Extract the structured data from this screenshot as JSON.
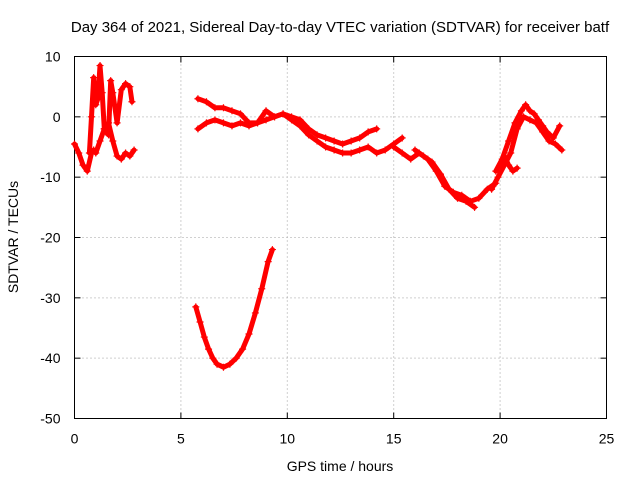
{
  "chart_data": {
    "type": "scatter",
    "title": "Day 364 of 2021, Sidereal Day-to-day VTEC variation (SDTVAR) for receiver batf",
    "xlabel": "GPS time / hours",
    "ylabel": "SDTVAR / TECUs",
    "xlim": [
      0,
      25
    ],
    "ylim": [
      -50,
      10
    ],
    "xticks": [
      0,
      5,
      10,
      15,
      20,
      25
    ],
    "yticks": [
      -50,
      -40,
      -30,
      -20,
      -10,
      0,
      10
    ],
    "grid": true,
    "marker": "+",
    "color": "#ff0000",
    "series": [
      {
        "name": "segment-early-lower",
        "x": [
          0.0,
          0.2,
          0.4,
          0.6,
          0.8,
          0.9,
          1.0,
          1.2,
          1.4,
          1.6,
          1.8,
          2.0,
          2.2,
          2.4,
          2.6,
          2.8
        ],
        "y": [
          -4.5,
          -6.0,
          -8.0,
          -9.0,
          -6.0,
          -5.5,
          -6.0,
          -4.0,
          -2.0,
          -1.0,
          -4.0,
          -6.5,
          -7.0,
          -6.0,
          -6.5,
          -5.5
        ]
      },
      {
        "name": "segment-early-spikes",
        "x": [
          0.7,
          0.8,
          0.9,
          1.0,
          1.1,
          1.2,
          1.3,
          1.4,
          1.6,
          1.7,
          1.8,
          2.0,
          2.2,
          2.4,
          2.6,
          2.7
        ],
        "y": [
          -6.0,
          0.0,
          6.5,
          2.0,
          3.0,
          8.5,
          4.0,
          -2.0,
          -3.0,
          6.0,
          4.0,
          -1.0,
          4.5,
          5.5,
          5.0,
          2.5
        ]
      },
      {
        "name": "segment-morning-upper",
        "x": [
          5.8,
          6.2,
          6.6,
          7.0,
          7.4,
          7.8,
          8.2,
          8.6,
          9.0,
          9.4,
          9.8,
          10.2,
          10.6,
          11.0,
          11.4,
          11.8,
          12.2,
          12.6,
          13.0,
          13.4,
          13.8,
          14.2
        ],
        "y": [
          3.0,
          2.5,
          1.5,
          1.5,
          1.0,
          0.5,
          -1.0,
          -1.0,
          1.0,
          0.0,
          0.5,
          0.0,
          -0.5,
          -2.0,
          -3.0,
          -3.5,
          -4.0,
          -4.5,
          -4.0,
          -3.5,
          -2.5,
          -2.0
        ]
      },
      {
        "name": "segment-morning-lower",
        "x": [
          5.8,
          6.2,
          6.6,
          7.0,
          7.4,
          7.8,
          8.2,
          8.6,
          9.0,
          9.4,
          9.8,
          10.2,
          10.6,
          11.0,
          11.4,
          11.8,
          12.2,
          12.6,
          13.0,
          13.4,
          13.8,
          14.2,
          14.6,
          15.0,
          15.4
        ],
        "y": [
          -2.0,
          -1.0,
          -0.5,
          -1.0,
          -1.5,
          -1.0,
          -1.5,
          -1.0,
          -0.5,
          0.0,
          0.5,
          -0.5,
          -1.5,
          -3.0,
          -4.0,
          -5.0,
          -5.5,
          -6.0,
          -6.0,
          -5.5,
          -5.0,
          -6.0,
          -5.5,
          -4.5,
          -3.5
        ]
      },
      {
        "name": "segment-deep-dip",
        "x": [
          5.7,
          5.9,
          6.1,
          6.3,
          6.5,
          6.7,
          7.0,
          7.3,
          7.6,
          7.9,
          8.2,
          8.5,
          8.8,
          9.1,
          9.3
        ],
        "y": [
          -31.5,
          -34.0,
          -36.5,
          -38.5,
          -40.0,
          -41.0,
          -41.5,
          -41.0,
          -40.0,
          -38.5,
          -36.0,
          -32.5,
          -28.5,
          -24.0,
          -22.0
        ]
      },
      {
        "name": "segment-afternoon",
        "x": [
          15.0,
          15.4,
          15.8,
          16.2,
          16.6,
          17.0,
          17.4,
          17.8,
          18.2,
          18.6,
          19.0,
          19.4,
          19.8
        ],
        "y": [
          -5.0,
          -6.0,
          -7.0,
          -6.0,
          -7.0,
          -9.0,
          -11.5,
          -12.5,
          -13.0,
          -14.0,
          -13.5,
          -12.0,
          -11.0
        ]
      },
      {
        "name": "segment-afternoon-lower",
        "x": [
          16.0,
          16.4,
          16.8,
          17.2,
          17.6,
          18.0,
          18.4,
          18.8
        ],
        "y": [
          -5.5,
          -6.5,
          -7.5,
          -9.5,
          -12.0,
          -13.5,
          -14.0,
          -15.0
        ]
      },
      {
        "name": "segment-evening-upper",
        "x": [
          19.8,
          20.1,
          20.4,
          20.7,
          21.0,
          21.2,
          21.4,
          21.6,
          21.8,
          22.0,
          22.2,
          22.5,
          22.8
        ],
        "y": [
          -9.0,
          -7.0,
          -4.0,
          -1.0,
          1.0,
          2.0,
          1.0,
          0.5,
          -0.5,
          -1.5,
          -2.5,
          -3.5,
          -1.5
        ]
      },
      {
        "name": "segment-evening-lower",
        "x": [
          19.6,
          19.9,
          20.2,
          20.5,
          20.8,
          21.1,
          21.4,
          21.7,
          22.0,
          22.3,
          22.6,
          22.9
        ],
        "y": [
          -12.0,
          -10.0,
          -8.0,
          -6.0,
          -2.0,
          0.0,
          -0.5,
          -1.0,
          -2.5,
          -4.0,
          -4.5,
          -5.5
        ]
      },
      {
        "name": "segment-evening-branch",
        "x": [
          20.0,
          20.2,
          20.4,
          20.6,
          20.8
        ],
        "y": [
          -8.0,
          -6.5,
          -8.0,
          -9.0,
          -8.5
        ]
      }
    ]
  }
}
